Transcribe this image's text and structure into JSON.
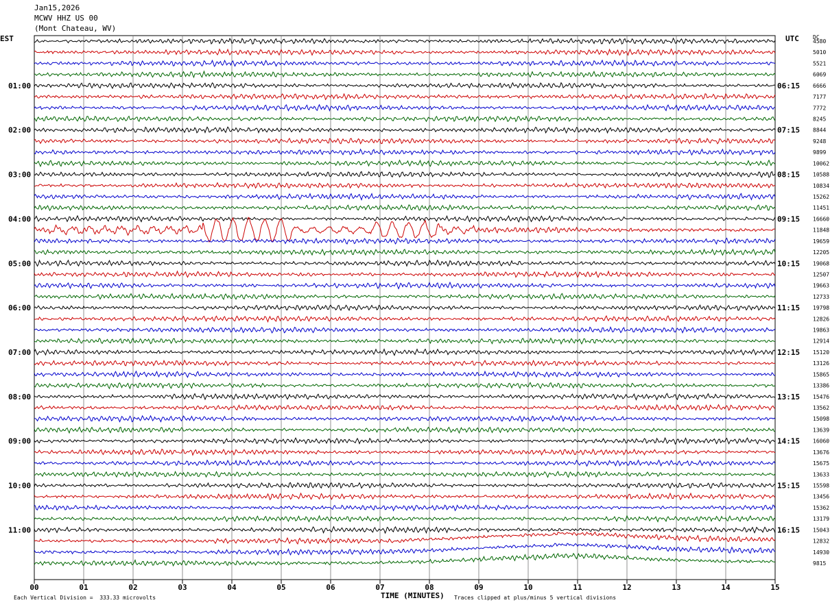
{
  "header": {
    "date": "Jan15,2026",
    "station": "MCWV HHZ US 00",
    "location": "(Mont Chateau, WV)"
  },
  "left_zone": "EST",
  "right_zone": "UTC",
  "dc_label": "DC",
  "footer": {
    "scale_note": "Each Vertical Division =  333.33 microvolts",
    "xlabel": "TIME (MINUTES)",
    "clip_note": "Traces clipped at plus/minus 5 vertical divisions"
  },
  "colors": [
    "#000000",
    "#cc0000",
    "#0000cc",
    "#006600"
  ],
  "chart_data": {
    "type": "line",
    "title": "",
    "xlabel": "TIME (MINUTES)",
    "ylabel": "",
    "xlim": [
      0,
      15
    ],
    "x_ticks": [
      "00",
      "01",
      "02",
      "03",
      "04",
      "05",
      "06",
      "07",
      "08",
      "09",
      "10",
      "11",
      "12",
      "13",
      "14",
      "15"
    ],
    "grid": true,
    "left_hour_labels": [
      "01:00",
      "02:00",
      "03:00",
      "04:00",
      "05:00",
      "06:00",
      "07:00",
      "08:00",
      "09:00",
      "10:00",
      "11:00"
    ],
    "right_hour_labels": [
      "06:15",
      "07:15",
      "08:15",
      "09:15",
      "10:15",
      "11:15",
      "12:15",
      "13:15",
      "14:15",
      "15:15",
      "16:15"
    ],
    "dc_values": [
      "4580",
      "5010",
      "5521",
      "6069",
      "6666",
      "7177",
      "7772",
      "8245",
      "8844",
      "9248",
      "9899",
      "10062",
      "10588",
      "10834",
      "15262",
      "11451",
      "16660",
      "11848",
      "19659",
      "12205",
      "19068",
      "12507",
      "19663",
      "12733",
      "19798",
      "12826",
      "19863",
      "12914",
      "15120",
      "13126",
      "15865",
      "13386",
      "15476",
      "13562",
      "15098",
      "13639",
      "16060",
      "13676",
      "15675",
      "13633",
      "15598",
      "13456",
      "15362",
      "13179",
      "15043",
      "12832",
      "14930",
      "9815"
    ],
    "trace_count": 48,
    "traces_per_hour": 4,
    "events": [
      {
        "trace": 17,
        "x_start": 0.3,
        "x_end": 8.9,
        "type": "large-amplitude"
      },
      {
        "trace": 45,
        "x_start": 7.5,
        "x_end": 15,
        "type": "long-period"
      },
      {
        "trace": 46,
        "x_start": 5.0,
        "x_end": 15,
        "type": "long-period"
      },
      {
        "trace": 47,
        "x_start": 4.0,
        "x_end": 15,
        "type": "long-period"
      }
    ]
  }
}
